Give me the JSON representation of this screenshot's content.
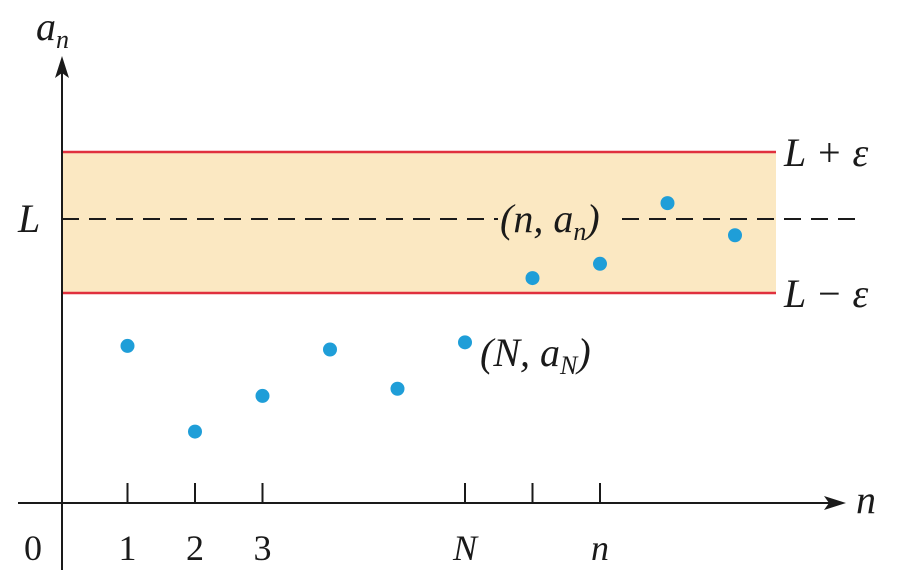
{
  "colors": {
    "band_fill": "#fbe8c2",
    "bound_line": "#e0303e",
    "point": "#1f9ed8",
    "axis": "#1a1a1a"
  },
  "labels": {
    "y_axis": "a",
    "y_axis_sub": "n",
    "x_axis": "n",
    "origin": "0",
    "limit": "L",
    "upper": "L + ε",
    "lower": "L − ε",
    "point_n": "(n, a",
    "point_n_sub": "n",
    "point_n_close": ")",
    "point_N": "(N, a",
    "point_N_sub": "N",
    "point_N_close": ")"
  },
  "x_ticks": [
    "1",
    "2",
    "3",
    "",
    "",
    "N",
    "",
    "n",
    "",
    ""
  ],
  "sequence": [
    {
      "n": 1,
      "a": 0.44
    },
    {
      "n": 2,
      "a": 0.2
    },
    {
      "n": 3,
      "a": 0.3
    },
    {
      "n": 4,
      "a": 0.43
    },
    {
      "n": 5,
      "a": 0.32
    },
    {
      "n": 6,
      "a": 0.45
    },
    {
      "n": 7,
      "a": 0.63
    },
    {
      "n": 8,
      "a": 0.67
    },
    {
      "n": 9,
      "a": 0.84
    },
    {
      "n": 10,
      "a": 0.75
    }
  ],
  "band": {
    "L": 0.8,
    "epsilon": 0.2
  }
}
